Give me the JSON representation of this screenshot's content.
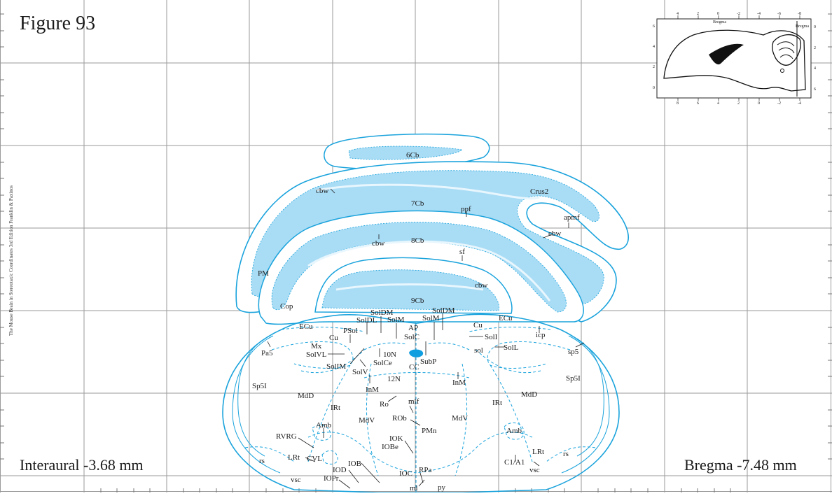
{
  "figure": {
    "title": "Figure 93",
    "interaural": "Interaural -3.68 mm",
    "bregma": "Bregma -7.48 mm",
    "side_text": "The Mouse Brain in Stereotaxic Coordinates 3rd Edition  Franklin & Paxinos"
  },
  "inset": {
    "top_ticks": [
      "4",
      "2",
      "0",
      "-2",
      "-4",
      "-6",
      "-8"
    ],
    "bottom_ticks": [
      "8",
      "6",
      "4",
      "2",
      "0",
      "-2",
      "-4"
    ],
    "left_ticks": [
      "6",
      "4",
      "2",
      "0"
    ],
    "right_ticks": [
      "0",
      "2",
      "4",
      "6"
    ],
    "bregma_label": "Bregma"
  },
  "colors": {
    "line": "#1aa3dc",
    "fill": "#a9dcf5",
    "grid": "#9a9a9a",
    "dot": "#0f9ee0"
  },
  "labels": {
    "cb6": "6Cb",
    "cbw_a": "cbw",
    "cb7": "7Cb",
    "ppf": "ppf",
    "crus2": "Crus2",
    "apmf": "apmf",
    "cbw_b": "cbw",
    "cbw_c": "cbw",
    "cb8": "8Cb",
    "sf": "sf",
    "pm": "PM",
    "cbw_d": "cbw",
    "cb9": "9Cb",
    "cop": "Cop",
    "soldm_l": "SolDM",
    "soldm_r": "SolDM",
    "soldl": "SolDL",
    "solm_l": "SolM",
    "solm_r": "SolM",
    "ap": "AP",
    "solc": "SolC",
    "ecu_l": "ECu",
    "ecu_r": "ECu",
    "psol": "PSol",
    "cu_l": "Cu",
    "cu_r": "Cu",
    "icp": "icp",
    "soli": "SolI",
    "sol": "sol",
    "soll": "SolL",
    "mx": "Mx",
    "pa5": "Pa5",
    "n10": "10N",
    "solvl": "SolVL",
    "subp": "SubP",
    "solce": "SolCe",
    "cc": "CC",
    "solim": "SolIM",
    "solv": "SolV",
    "sp5": "sp5",
    "n12": "12N",
    "inm_l": "InM",
    "inm_r": "InM",
    "sp5i_l": "Sp5I",
    "sp5i_r": "Sp5I",
    "mdd_l": "MdD",
    "mdd_r": "MdD",
    "ro": "Ro",
    "mlf": "mlf",
    "irt_l": "IRt",
    "irt_r": "IRt",
    "rob": "ROb",
    "mdv_l": "MdV",
    "mdv_r": "MdV",
    "pmn": "PMn",
    "amb_l": "Amb",
    "amb_r": "Amb",
    "rvrg": "RVRG",
    "iok": "IOK",
    "iobe": "IOBe",
    "lrt_l": "LRt",
    "lrt_r": "LRt",
    "cvl": "CVL",
    "c1a1": "C1/A1",
    "rs_l": "rs",
    "rs_r": "rs",
    "iob": "IOB",
    "iod": "IOD",
    "rpa": "RPa",
    "vsc_l": "vsc",
    "vsc_r": "vsc",
    "iopr": "IOPr",
    "ioc": "IOC",
    "ml": "ml",
    "py": "py"
  }
}
